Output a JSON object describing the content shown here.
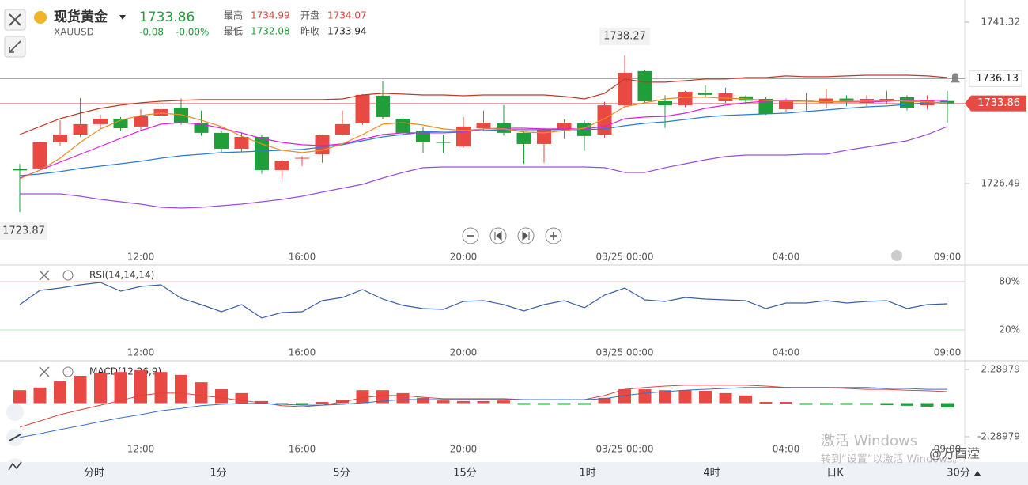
{
  "header": {
    "name": "现货黄金",
    "symbol": "XAUUSD",
    "price": 1733.86,
    "change": "-0.08",
    "change_pct": "-0.00%",
    "stats": [
      {
        "label": "最高",
        "value": 1734.99,
        "color": "#e0433c"
      },
      {
        "label": "开盘",
        "value": 1734.07,
        "color": "#e0433c"
      },
      {
        "label": "最低",
        "value": 1732.08,
        "color": "#1f9e3a"
      },
      {
        "label": "昨收",
        "value": 1733.94,
        "color": "#222222"
      }
    ]
  },
  "tabs": [
    "分时",
    "1分",
    "5分",
    "15分",
    "1时",
    "4时",
    "日K",
    "30分"
  ],
  "watermark": {
    "title": "激活 Windows",
    "subtitle": "转到“设置”以激活 Windows。"
  },
  "credit": "@万酉滢",
  "chart_data": [
    {
      "type": "candlestick",
      "categories": [
        null,
        null,
        null,
        null,
        null,
        null,
        "12:00",
        null,
        null,
        null,
        null,
        null,
        null,
        null,
        "16:00",
        null,
        null,
        null,
        null,
        null,
        null,
        null,
        "20:00",
        null,
        null,
        null,
        null,
        null,
        null,
        null,
        "03/25 00:00",
        null,
        null,
        null,
        null,
        null,
        null,
        null,
        "04:00",
        null,
        null,
        null,
        null,
        null,
        null,
        null,
        "09:00"
      ],
      "open": [
        1727.8,
        1727.88,
        1730.27,
        1730.99,
        1731.95,
        1732.45,
        1731.73,
        1732.74,
        1733.47,
        1732.09,
        1731.15,
        1729.69,
        1730.78,
        1727.73,
        1728.8,
        1729.18,
        1731.0,
        1732.02,
        1734.57,
        1732.45,
        1731.29,
        1730.3,
        1729.9,
        1731.58,
        1732.02,
        1731.15,
        1730.13,
        1731.44,
        1732.02,
        1730.99,
        1733.68,
        1736.82,
        1734.05,
        1733.68,
        1734.85,
        1734.05,
        1734.5,
        1734.27,
        1733.32,
        1734.05,
        1733.9,
        1734.3,
        1733.9,
        1734.05,
        1734.42,
        1733.68,
        1734.07
      ],
      "high": [
        1728.3,
        1730.3,
        1732.3,
        1734.34,
        1732.8,
        1732.6,
        1733.3,
        1733.6,
        1734.3,
        1733.2,
        1731.3,
        1731.2,
        1731.0,
        1728.7,
        1729.0,
        1731.0,
        1733.2,
        1734.7,
        1735.87,
        1732.6,
        1731.7,
        1731.0,
        1732.6,
        1733.2,
        1733.7,
        1731.3,
        1731.6,
        1732.4,
        1732.3,
        1734.0,
        1738.27,
        1736.9,
        1734.6,
        1735.0,
        1735.5,
        1735.3,
        1734.6,
        1734.4,
        1734.3,
        1734.8,
        1735.2,
        1734.6,
        1734.6,
        1735.0,
        1734.6,
        1734.6,
        1734.99
      ],
      "low": [
        1723.87,
        1727.6,
        1730.0,
        1730.8,
        1731.5,
        1731.3,
        1731.4,
        1732.6,
        1731.9,
        1730.9,
        1729.4,
        1729.4,
        1727.4,
        1726.9,
        1728.1,
        1728.4,
        1730.9,
        1731.9,
        1732.4,
        1730.9,
        1729.3,
        1729.3,
        1729.8,
        1731.3,
        1730.9,
        1728.3,
        1728.4,
        1730.6,
        1729.5,
        1730.7,
        1733.5,
        1733.9,
        1731.6,
        1733.5,
        1734.4,
        1733.9,
        1733.8,
        1732.8,
        1733.1,
        1733.2,
        1733.4,
        1733.6,
        1733.6,
        1733.8,
        1733.2,
        1733.3,
        1732.08
      ],
      "close": [
        1727.7,
        1730.27,
        1730.99,
        1731.95,
        1732.45,
        1731.58,
        1732.67,
        1733.32,
        1732.09,
        1731.15,
        1729.69,
        1730.78,
        1727.73,
        1728.6,
        1728.85,
        1730.93,
        1731.95,
        1734.64,
        1732.6,
        1731.15,
        1730.27,
        1730.25,
        1731.73,
        1732.09,
        1731.15,
        1730.13,
        1731.44,
        1732.09,
        1730.86,
        1733.68,
        1736.67,
        1734.05,
        1733.68,
        1734.92,
        1734.64,
        1734.78,
        1734.1,
        1732.89,
        1734.05,
        1734.1,
        1734.3,
        1733.97,
        1734.27,
        1734.27,
        1733.47,
        1734.12,
        1733.86
      ],
      "up_color": "#e84a43",
      "down_color": "#1f9e3a",
      "overlays": [
        {
          "color": "#c0392b",
          "values": [
            1731.0,
            1731.73,
            1732.45,
            1732.96,
            1733.4,
            1733.69,
            1733.91,
            1734.05,
            1734.13,
            1734.2,
            1734.2,
            1734.2,
            1734.2,
            1734.2,
            1734.2,
            1734.2,
            1734.27,
            1734.63,
            1734.78,
            1734.71,
            1734.63,
            1734.63,
            1734.56,
            1734.63,
            1734.63,
            1734.63,
            1734.63,
            1734.49,
            1734.27,
            1734.78,
            1736.09,
            1735.8,
            1735.8,
            1735.94,
            1736.09,
            1736.09,
            1736.23,
            1736.23,
            1736.38,
            1736.31,
            1736.31,
            1736.38,
            1736.45,
            1736.45,
            1736.45,
            1736.38,
            1736.23
          ]
        },
        {
          "color": "#9b4de0",
          "values": [
            1725.55,
            1725.55,
            1725.55,
            1725.33,
            1725.04,
            1724.82,
            1724.6,
            1724.31,
            1724.24,
            1724.31,
            1724.46,
            1724.6,
            1724.82,
            1725.04,
            1725.33,
            1725.7,
            1726.06,
            1726.42,
            1727.0,
            1727.51,
            1727.95,
            1728.02,
            1728.02,
            1728.02,
            1728.02,
            1728.02,
            1728.02,
            1728.02,
            1728.02,
            1727.95,
            1727.51,
            1727.51,
            1727.95,
            1728.31,
            1728.67,
            1728.97,
            1729.11,
            1729.11,
            1729.11,
            1729.18,
            1729.18,
            1729.55,
            1729.84,
            1730.13,
            1730.42,
            1731.0,
            1731.73
          ]
        },
        {
          "color": "#2b7bd8",
          "values": [
            1727.22,
            1727.37,
            1727.59,
            1727.88,
            1728.09,
            1728.31,
            1728.53,
            1728.82,
            1729.04,
            1729.18,
            1729.33,
            1729.4,
            1729.47,
            1729.55,
            1729.62,
            1729.84,
            1730.06,
            1730.42,
            1730.78,
            1731.0,
            1731.22,
            1731.29,
            1731.29,
            1731.36,
            1731.44,
            1731.44,
            1731.44,
            1731.44,
            1731.44,
            1731.51,
            1731.8,
            1732.02,
            1732.16,
            1732.38,
            1732.6,
            1732.75,
            1732.82,
            1732.89,
            1732.96,
            1733.11,
            1733.25,
            1733.4,
            1733.54,
            1733.62,
            1733.76,
            1733.91,
            1733.98
          ]
        },
        {
          "color": "#e020e0",
          "values": [
            1727.0,
            1727.73,
            1728.46,
            1729.18,
            1729.91,
            1730.64,
            1731.36,
            1731.95,
            1732.09,
            1731.95,
            1731.58,
            1731.15,
            1730.64,
            1730.27,
            1730.06,
            1729.98,
            1730.13,
            1730.56,
            1731.0,
            1731.15,
            1731.15,
            1731.15,
            1731.22,
            1731.51,
            1731.58,
            1731.58,
            1731.51,
            1731.51,
            1731.51,
            1731.73,
            1732.45,
            1732.6,
            1732.67,
            1732.96,
            1733.4,
            1733.69,
            1733.91,
            1734.05,
            1734.13,
            1734.05,
            1733.98,
            1733.98,
            1733.98,
            1734.05,
            1734.13,
            1734.13,
            1734.13
          ]
        },
        {
          "color": "#f08a24",
          "values": [
            1726.93,
            1727.73,
            1728.82,
            1730.27,
            1731.51,
            1732.31,
            1732.75,
            1732.96,
            1732.82,
            1732.31,
            1731.73,
            1730.85,
            1730.13,
            1729.55,
            1729.33,
            1729.55,
            1730.13,
            1731.0,
            1731.95,
            1732.09,
            1731.87,
            1731.51,
            1731.36,
            1731.51,
            1731.51,
            1731.22,
            1731.15,
            1731.36,
            1731.58,
            1732.45,
            1733.54,
            1733.91,
            1734.27,
            1734.42,
            1734.42,
            1734.34,
            1734.27,
            1734.13,
            1734.05,
            1734.05,
            1733.98,
            1734.05,
            1734.05,
            1734.13,
            1734.05,
            1733.98,
            1733.91
          ]
        }
      ],
      "price_lines": [
        {
          "value": 1736.13,
          "color": "#555555"
        },
        {
          "value": 1733.86,
          "color": "#e84a43"
        }
      ],
      "high_label": 1738.27,
      "low_label": 1723.87,
      "ylim": [
        1720.46,
        1743.35
      ],
      "yticks": [
        1726.49,
        1741.32
      ]
    },
    {
      "type": "line",
      "title": "RSI(14,14,14)",
      "color": "#3a5fa8",
      "values": [
        51.5,
        69.2,
        72.1,
        76.1,
        79.0,
        68.2,
        74.1,
        76.1,
        59.3,
        51.5,
        42.6,
        51.5,
        34.8,
        41.6,
        42.6,
        56.4,
        60.3,
        70.2,
        58.4,
        50.5,
        46.6,
        45.6,
        55.4,
        56.4,
        51.5,
        43.6,
        51.5,
        56.4,
        47.5,
        63.3,
        72.1,
        57.4,
        55.4,
        60.3,
        58.4,
        57.4,
        56.4,
        46.6,
        53.4,
        53.4,
        56.4,
        53.4,
        55.4,
        56.4,
        46.6,
        51.5,
        52.5
      ],
      "ylim": [
        -17.4,
        98.7
      ],
      "yticks": [
        {
          "value": 20,
          "label": "20%"
        },
        {
          "value": 80,
          "label": "80%"
        }
      ]
    },
    {
      "type": "macd",
      "title": "MACD(12,26,9)",
      "up_color": "#e84a43",
      "down_color": "#1f9e3a",
      "dif_color": "#d9463c",
      "dea_color": "#3a6fd0",
      "histogram": [
        0.88,
        1.06,
        1.48,
        1.86,
        2.02,
        2.12,
        2.24,
        2.12,
        1.92,
        1.42,
        0.94,
        0.68,
        0.14,
        -0.02,
        -0.08,
        0.08,
        0.24,
        0.88,
        0.88,
        0.68,
        0.36,
        0.18,
        0.14,
        0.14,
        0.18,
        -0.04,
        -0.04,
        -0.04,
        -0.04,
        0.36,
        0.94,
        0.94,
        0.88,
        0.88,
        0.84,
        0.68,
        0.52,
        0.08,
        0.08,
        -0.02,
        -0.04,
        -0.08,
        -0.08,
        -0.14,
        -0.18,
        -0.24,
        -0.3
      ],
      "dif": [
        -1.64,
        -1.22,
        -0.78,
        -0.46,
        -0.14,
        0.18,
        0.52,
        0.68,
        0.68,
        0.52,
        0.36,
        0.18,
        0.02,
        -0.18,
        -0.24,
        -0.14,
        0.08,
        0.36,
        0.52,
        0.52,
        0.4,
        0.3,
        0.3,
        0.3,
        0.3,
        0.24,
        0.24,
        0.24,
        0.24,
        0.52,
        0.94,
        1.06,
        1.16,
        1.22,
        1.22,
        1.22,
        1.22,
        1.16,
        1.06,
        1.06,
        1.06,
        1.0,
        0.94,
        0.94,
        0.88,
        0.84,
        0.78
      ],
      "dea": [
        -2.34,
        -2.08,
        -1.8,
        -1.54,
        -1.26,
        -1.0,
        -0.78,
        -0.52,
        -0.36,
        -0.18,
        -0.08,
        -0.02,
        -0.02,
        -0.08,
        -0.14,
        -0.14,
        -0.08,
        0.02,
        0.14,
        0.24,
        0.24,
        0.24,
        0.24,
        0.24,
        0.24,
        0.24,
        0.24,
        0.24,
        0.24,
        0.3,
        0.52,
        0.68,
        0.78,
        0.88,
        0.94,
        1.0,
        1.06,
        1.06,
        1.06,
        1.06,
        1.06,
        1.06,
        1.06,
        1.0,
        1.0,
        0.94,
        0.94
      ],
      "ylim": [
        -3.8,
        2.83
      ],
      "yticks": [
        -2.28979,
        2.28979
      ]
    }
  ]
}
